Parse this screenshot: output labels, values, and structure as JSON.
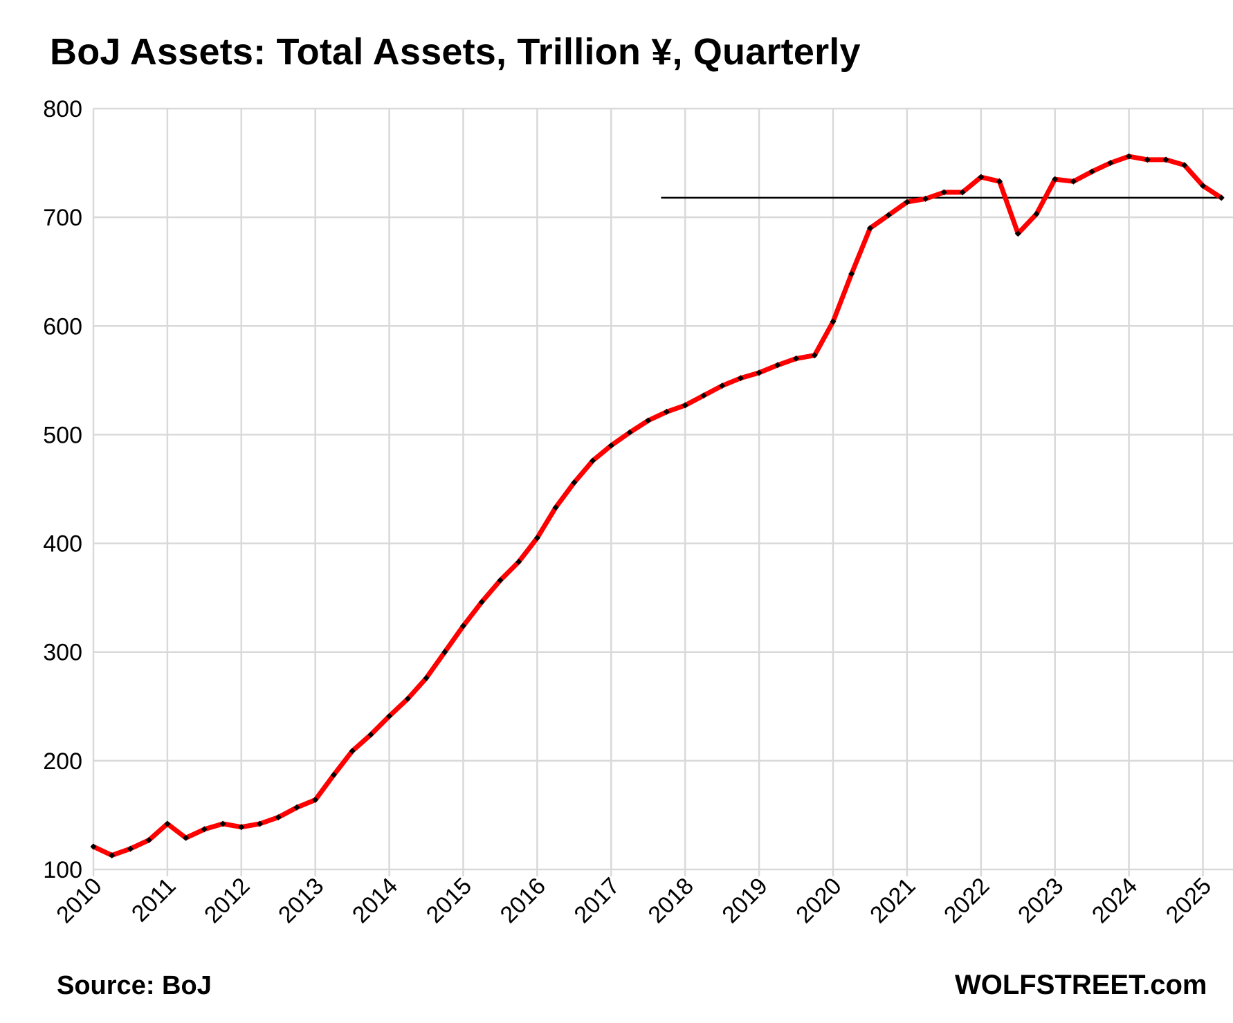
{
  "chart_data": {
    "type": "line",
    "title": "BoJ Assets: Total Assets, Trillion ¥, Quarterly",
    "xlabel": "",
    "ylabel": "",
    "ylim": [
      100,
      800
    ],
    "yticks": [
      100,
      200,
      300,
      400,
      500,
      600,
      700,
      800
    ],
    "xticks": [
      "2010",
      "2011",
      "2012",
      "2013",
      "2014",
      "2015",
      "2016",
      "2017",
      "2018",
      "2019",
      "2020",
      "2021",
      "2022",
      "2023",
      "2024",
      "2025"
    ],
    "grid": true,
    "colors": {
      "line": "#ff0000",
      "markers": "#000000",
      "reference_line": "#000000",
      "grid": "#d9d9d9"
    },
    "series": [
      {
        "values": [
          121,
          113,
          119,
          127,
          142,
          129,
          137,
          142,
          139,
          142,
          148,
          157,
          164,
          187,
          209,
          224,
          241,
          257,
          276,
          300,
          324,
          346,
          366,
          383,
          405,
          433,
          456,
          476,
          490,
          502,
          513,
          521,
          527,
          536,
          545,
          552,
          557,
          564,
          570,
          573,
          604,
          648,
          690,
          702,
          714,
          717,
          723,
          723,
          737,
          733,
          685,
          703,
          735,
          733,
          742,
          750,
          756,
          753,
          753,
          748,
          729,
          718
        ]
      }
    ],
    "reference_line": {
      "y": 718,
      "x_from": "2017 Q4",
      "x_to": "2025 Q2"
    }
  },
  "footer": {
    "source": "Source: BoJ",
    "brand": "WOLFSTREET.com"
  }
}
